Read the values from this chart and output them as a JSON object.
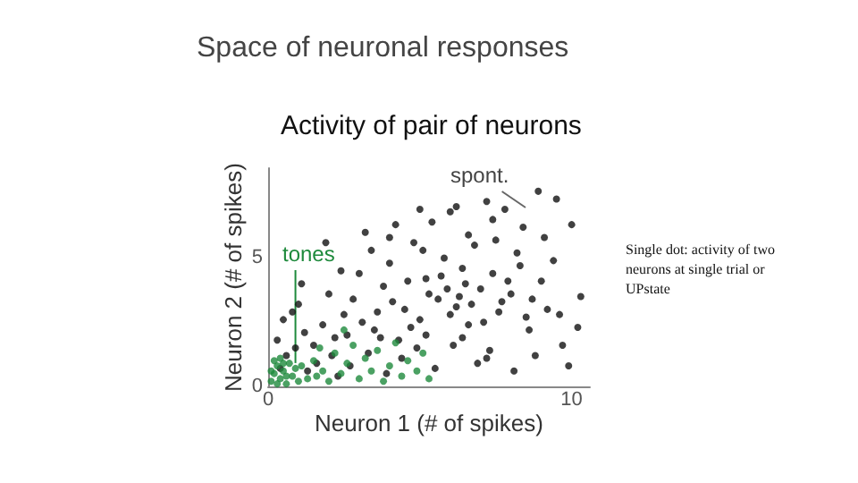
{
  "chart_data": {
    "type": "scatter",
    "title": "Space of neuronal responses",
    "subtitle": "Activity of pair of neurons",
    "xlabel": "Neuron 1 (# of spikes)",
    "ylabel": "Neuron 2 (# of spikes)",
    "xlim": [
      0,
      10.6
    ],
    "xticks": [
      0,
      10
    ],
    "ylim": [
      0,
      8.5
    ],
    "yticks": [
      0,
      5
    ],
    "grid": false,
    "marker": "circle",
    "series": [
      {
        "color": "#111111",
        "x": [
          0.3,
          0.5,
          0.8,
          1.0,
          1.2,
          0.6,
          1.5,
          1.8,
          2.0,
          2.2,
          2.5,
          2.8,
          3.0,
          3.2,
          3.5,
          3.8,
          4.0,
          4.2,
          4.5,
          4.8,
          5.0,
          5.2,
          5.4,
          5.6,
          5.8,
          6.0,
          6.2,
          6.4,
          6.6,
          6.8,
          7.0,
          7.2,
          7.4,
          7.6,
          7.8,
          8.0,
          8.2,
          8.4,
          8.6,
          8.9,
          9.0,
          9.2,
          9.5,
          9.7,
          10.0,
          10.3,
          10.2,
          9.9,
          9.4,
          8.8,
          8.1,
          7.3,
          6.9,
          6.1,
          5.5,
          4.9,
          4.4,
          3.9,
          3.3,
          2.7,
          2.3,
          1.6,
          5.9,
          6.3,
          6.5,
          6.7,
          5.7,
          6.0,
          5.3,
          7.1,
          7.7,
          4.7,
          4.1,
          3.6,
          3.1,
          2.6,
          2.1,
          1.3,
          0.9,
          0.4,
          5.1,
          6.6,
          7.5,
          8.3,
          9.1,
          7.9,
          8.7,
          3.4,
          4.6,
          2.4,
          1.9,
          1.1,
          6.4,
          7.2,
          5.2,
          4.3,
          3.7,
          8.5,
          9.6,
          7.4,
          6.2,
          5.0,
          4.0
        ],
        "values": [
          1.8,
          2.6,
          2.9,
          3.2,
          2.1,
          1.2,
          1.6,
          2.4,
          3.6,
          1.9,
          2.8,
          3.4,
          4.4,
          6.0,
          2.2,
          3.9,
          4.8,
          6.3,
          3.0,
          5.6,
          2.6,
          4.2,
          6.4,
          3.4,
          5.0,
          6.8,
          3.1,
          4.6,
          2.4,
          5.5,
          3.8,
          7.2,
          4.4,
          2.9,
          6.9,
          3.6,
          5.2,
          6.2,
          2.2,
          7.6,
          4.1,
          3.0,
          7.3,
          1.6,
          6.3,
          3.5,
          2.3,
          0.8,
          4.9,
          1.2,
          0.6,
          1.4,
          0.9,
          1.6,
          0.7,
          1.5,
          1.1,
          0.5,
          1.3,
          0.8,
          0.4,
          0.9,
          3.8,
          3.5,
          4.0,
          3.2,
          4.3,
          2.8,
          3.6,
          2.5,
          3.3,
          2.3,
          3.3,
          2.9,
          2.5,
          2.0,
          1.2,
          0.6,
          1.5,
          0.7,
          5.3,
          5.9,
          5.7,
          4.7,
          5.8,
          4.1,
          3.4,
          5.3,
          4.1,
          4.5,
          5.6,
          4.0,
          1.9,
          1.1,
          2.0,
          1.8,
          1.9,
          2.7,
          2.8,
          6.5,
          7.0,
          6.9,
          5.8
        ]
      },
      {
        "color": "#1e8a3c",
        "x": [
          0.1,
          0.2,
          0.3,
          0.4,
          0.5,
          0.6,
          0.7,
          0.8,
          0.9,
          0.2,
          0.4,
          1.0,
          1.1,
          1.3,
          1.5,
          1.6,
          1.8,
          2.0,
          2.2,
          2.4,
          2.6,
          2.8,
          3.0,
          3.2,
          3.4,
          3.6,
          3.8,
          4.0,
          4.2,
          4.4,
          4.6,
          4.9,
          5.1,
          5.3,
          2.5,
          1.7,
          0.1,
          0.3,
          0.6,
          0.5
        ],
        "values": [
          0.2,
          0.5,
          0.8,
          0.3,
          0.6,
          0.1,
          0.9,
          0.4,
          0.7,
          1.0,
          1.1,
          0.2,
          0.8,
          0.3,
          1.0,
          0.4,
          0.6,
          0.2,
          1.3,
          0.5,
          0.9,
          1.6,
          0.3,
          1.1,
          0.6,
          1.4,
          0.2,
          0.8,
          1.7,
          0.4,
          1.0,
          0.6,
          1.3,
          0.3,
          2.2,
          1.5,
          0.6,
          0.1,
          0.4,
          0.9
        ]
      }
    ],
    "annotations": [
      "spont.",
      {
        "text": "tones",
        "x": 0.9,
        "y": 0.7
      },
      "Single dot: activity of two neurons at single trial or UPstate"
    ]
  }
}
